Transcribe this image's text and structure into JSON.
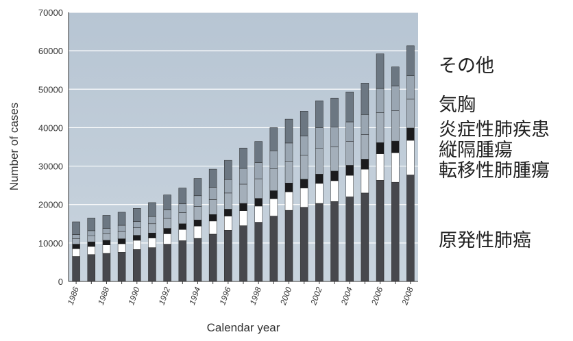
{
  "chart_data": {
    "type": "stacked-bar",
    "x_label": "Calendar year",
    "y_label": "Number of cases",
    "categories": [
      "1986",
      null,
      "1988",
      null,
      "1990",
      null,
      "1992",
      null,
      "1994",
      null,
      "1996",
      null,
      "1998",
      null,
      "2000",
      null,
      "2002",
      null,
      "2004",
      null,
      "2006",
      null,
      "2008"
    ],
    "series": [
      {
        "name": "原発性肺癌",
        "color": "#47484d",
        "values": [
          6500,
          7000,
          7300,
          7600,
          8300,
          8800,
          9700,
          10600,
          11200,
          12300,
          13300,
          14500,
          15400,
          17000,
          18500,
          19300,
          20300,
          20800,
          22000,
          23000,
          26300,
          25800,
          27700
        ]
      },
      {
        "name": "転移性肺腫瘍",
        "color": "#ffffff",
        "values": [
          2000,
          2100,
          2200,
          2200,
          2400,
          2500,
          2700,
          2900,
          3200,
          3400,
          3700,
          3900,
          4200,
          4500,
          4800,
          5000,
          5200,
          5400,
          5600,
          6200,
          6900,
          7700,
          9000
        ]
      },
      {
        "name": "縦隔腫瘍",
        "color": "#1b1b1d",
        "values": [
          1200,
          1200,
          1200,
          1300,
          1300,
          1300,
          1400,
          1500,
          1600,
          1700,
          1800,
          1900,
          2000,
          2100,
          2300,
          2300,
          2400,
          2500,
          2600,
          2600,
          2900,
          3000,
          3200
        ]
      },
      {
        "name": "炎症性肺疾患",
        "color": "#a4afba",
        "values": [
          1400,
          1600,
          1700,
          1900,
          2000,
          2400,
          2600,
          2900,
          3500,
          3900,
          4200,
          5000,
          5100,
          5700,
          5700,
          6200,
          6700,
          6300,
          6200,
          6400,
          7800,
          7900,
          7500
        ]
      },
      {
        "name": "気胸",
        "color": "#9aa6b2",
        "values": [
          1100,
          1300,
          1400,
          1600,
          1600,
          1900,
          2200,
          2300,
          2800,
          3200,
          3500,
          4100,
          4200,
          4700,
          4700,
          5000,
          5400,
          5200,
          5100,
          5200,
          6300,
          6400,
          6100
        ]
      },
      {
        "name": "その他",
        "color": "#6c7782",
        "values": [
          3300,
          3300,
          3400,
          3400,
          3400,
          3600,
          3900,
          4100,
          4500,
          4700,
          5000,
          5300,
          5500,
          6000,
          6200,
          6500,
          7000,
          7500,
          7800,
          8200,
          9000,
          5000,
          7800
        ]
      }
    ],
    "ylim": [
      0,
      70000
    ],
    "yticks": [
      0,
      10000,
      20000,
      30000,
      40000,
      50000,
      60000,
      70000
    ],
    "grid": true
  }
}
